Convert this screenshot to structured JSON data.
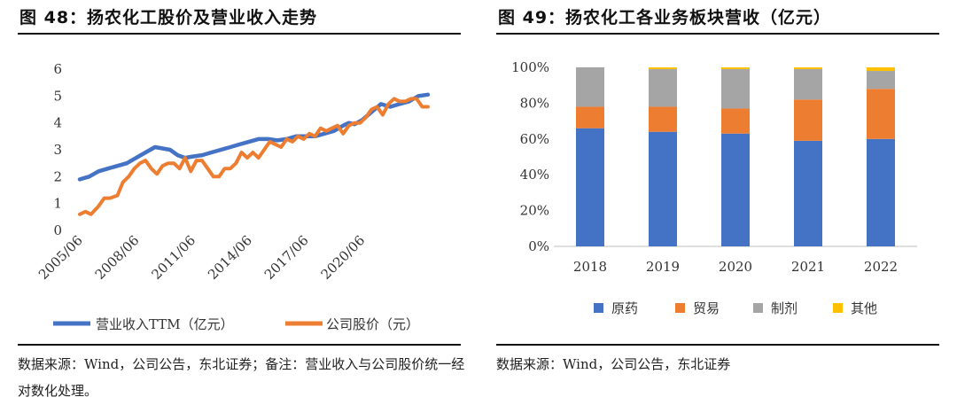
{
  "left": {
    "title": "图 48：扬农化工股价及营业收入走势",
    "source": "数据来源：Wind，公司公告，东北证券；备注：营业收入与公司股价统一经对数化处理。",
    "colors": {
      "revenue": "#4472c4",
      "price": "#ed7d31"
    }
  },
  "right": {
    "title": "图 49：扬农化工各业务板块营收（亿元）",
    "source": "数据来源：Wind，公司公告，东北证券",
    "colors": [
      "#4472c4",
      "#ed7d31",
      "#a5a5a5",
      "#ffc000"
    ]
  },
  "chart_data": [
    {
      "type": "line",
      "title": "图 48：扬农化工股价及营业收入走势",
      "xlabel": "",
      "ylabel": "",
      "ylim": [
        0,
        6
      ],
      "yticks": [
        0,
        1,
        2,
        3,
        4,
        5,
        6
      ],
      "xticks": [
        "2005/06",
        "2008/06",
        "2011/06",
        "2014/06",
        "2017/06",
        "2020/06"
      ],
      "xrange": [
        2005.0,
        2023.6
      ],
      "grid": false,
      "legend": "bottom",
      "series": [
        {
          "name": "营业收入TTM（亿元）",
          "x": [
            2005.0,
            2005.5,
            2006.0,
            2006.5,
            2007.0,
            2007.5,
            2008.0,
            2008.5,
            2009.0,
            2009.4,
            2009.8,
            2010.2,
            2010.6,
            2011.0,
            2011.5,
            2012.0,
            2012.5,
            2013.0,
            2013.5,
            2014.0,
            2014.5,
            2015.0,
            2015.5,
            2016.0,
            2016.5,
            2017.0,
            2017.5,
            2018.0,
            2018.5,
            2019.0,
            2019.3,
            2019.6,
            2020.0,
            2020.5,
            2021.0,
            2021.5,
            2022.0,
            2022.5,
            2023.0,
            2023.5
          ],
          "values": [
            1.9,
            2.0,
            2.2,
            2.3,
            2.4,
            2.5,
            2.7,
            2.9,
            3.1,
            3.05,
            3.0,
            2.8,
            2.7,
            2.75,
            2.8,
            2.9,
            3.0,
            3.1,
            3.2,
            3.3,
            3.4,
            3.4,
            3.35,
            3.4,
            3.5,
            3.5,
            3.5,
            3.6,
            3.7,
            3.9,
            4.0,
            3.95,
            4.1,
            4.4,
            4.7,
            4.6,
            4.7,
            4.8,
            5.0,
            5.05
          ]
        },
        {
          "name": "公司股价（元）",
          "x": [
            2005.0,
            2005.3,
            2005.6,
            2006.0,
            2006.3,
            2006.6,
            2007.0,
            2007.3,
            2007.6,
            2007.9,
            2008.2,
            2008.5,
            2008.8,
            2009.1,
            2009.4,
            2009.7,
            2010.0,
            2010.3,
            2010.6,
            2010.9,
            2011.2,
            2011.5,
            2011.8,
            2012.1,
            2012.4,
            2012.7,
            2013.0,
            2013.3,
            2013.6,
            2013.9,
            2014.2,
            2014.5,
            2014.8,
            2015.1,
            2015.4,
            2015.7,
            2016.0,
            2016.3,
            2016.6,
            2016.9,
            2017.2,
            2017.5,
            2017.8,
            2018.1,
            2018.4,
            2018.7,
            2019.0,
            2019.3,
            2019.6,
            2019.9,
            2020.2,
            2020.5,
            2020.8,
            2021.1,
            2021.4,
            2021.7,
            2022.0,
            2022.3,
            2022.6,
            2022.9,
            2023.2,
            2023.5
          ],
          "values": [
            0.6,
            0.7,
            0.6,
            0.9,
            1.2,
            1.2,
            1.3,
            1.8,
            2.0,
            2.3,
            2.5,
            2.6,
            2.3,
            2.1,
            2.4,
            2.5,
            2.5,
            2.3,
            2.7,
            2.2,
            2.6,
            2.6,
            2.3,
            2.0,
            2.0,
            2.3,
            2.3,
            2.5,
            2.9,
            2.7,
            2.9,
            2.7,
            3.0,
            3.3,
            3.2,
            3.1,
            3.4,
            3.3,
            3.5,
            3.4,
            3.6,
            3.5,
            3.8,
            3.7,
            3.8,
            3.9,
            3.6,
            3.9,
            4.0,
            4.0,
            4.2,
            4.5,
            4.6,
            4.3,
            4.7,
            4.9,
            4.8,
            4.8,
            4.9,
            4.9,
            4.6,
            4.6
          ]
        }
      ]
    },
    {
      "type": "bar",
      "stacked": true,
      "title": "图 49：扬农化工各业务板块营收（亿元）",
      "categories": [
        "2018",
        "2019",
        "2020",
        "2021",
        "2022"
      ],
      "ylim": [
        0,
        100
      ],
      "yticks": [
        "0%",
        "20%",
        "40%",
        "60%",
        "80%",
        "100%"
      ],
      "grid": false,
      "legend": "bottom",
      "series": [
        {
          "name": "原药",
          "values": [
            66,
            64,
            63,
            59,
            60
          ]
        },
        {
          "name": "贸易",
          "values": [
            12,
            14,
            14,
            23,
            28
          ]
        },
        {
          "name": "制剂",
          "values": [
            22,
            21,
            22,
            17,
            10
          ]
        },
        {
          "name": "其他",
          "values": [
            0,
            1,
            1,
            1,
            2
          ]
        }
      ]
    }
  ]
}
